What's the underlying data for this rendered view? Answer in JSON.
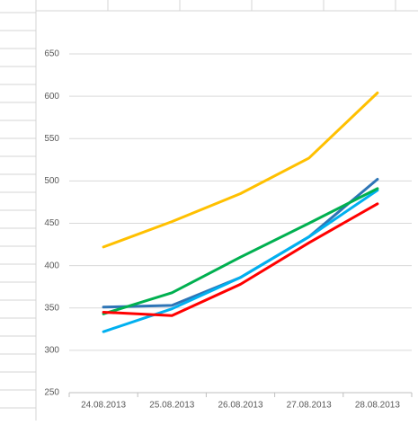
{
  "chart_data": {
    "type": "line",
    "categories": [
      "24.08.2013",
      "25.08.2013",
      "26.08.2013",
      "27.08.2013",
      "28.08.2013"
    ],
    "series": [
      {
        "color": "#ffc000",
        "values": [
          422,
          452,
          485,
          527,
          604
        ]
      },
      {
        "color": "#2e75b6",
        "values": [
          351,
          353,
          386,
          434,
          502
        ]
      },
      {
        "color": "#00b0f0",
        "values": [
          322,
          349,
          386,
          434,
          489
        ]
      },
      {
        "color": "#00b050",
        "values": [
          343,
          368,
          410,
          450,
          491
        ]
      },
      {
        "color": "#ff0000",
        "values": [
          345,
          341,
          378,
          427,
          473
        ]
      }
    ],
    "ylim": [
      250,
      650
    ],
    "yticks": [
      250,
      300,
      350,
      400,
      450,
      500,
      550,
      600,
      650
    ],
    "grid": true
  }
}
